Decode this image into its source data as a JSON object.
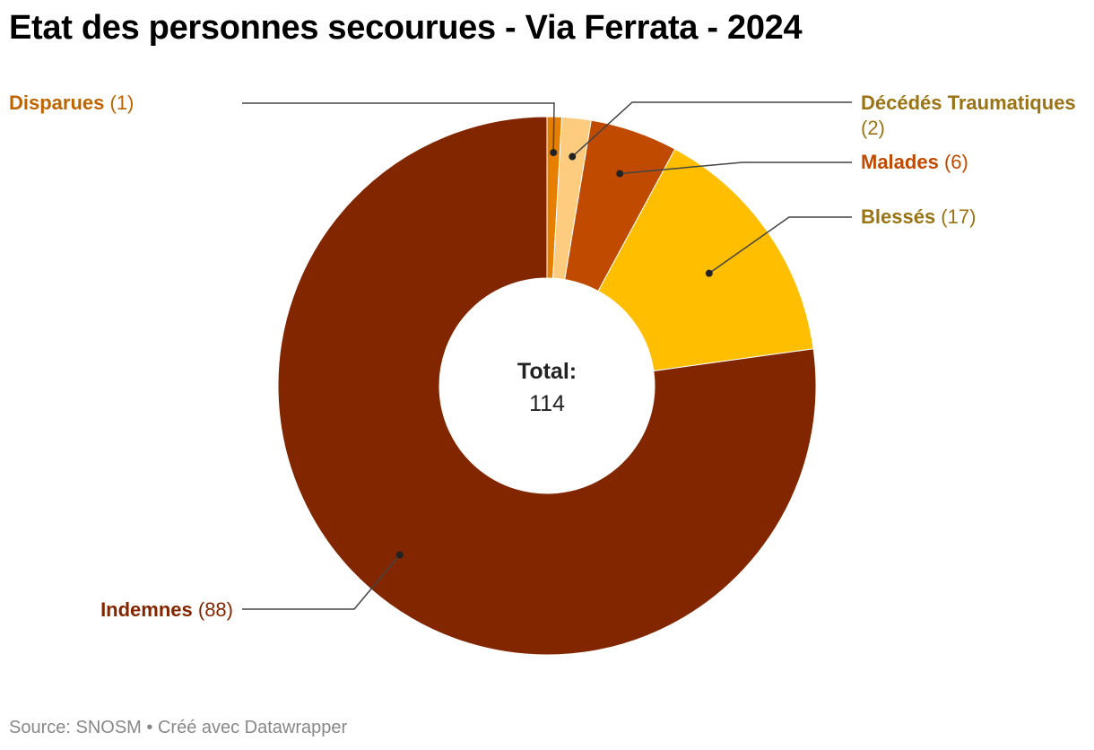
{
  "title": "Etat des personnes secourues - Via Ferrata - 2024",
  "footer": {
    "source": "Source: SNOSM",
    "separator": "•",
    "credit": "Créé avec Datawrapper"
  },
  "chart_data": {
    "type": "pie",
    "variant": "donut",
    "title": "Etat des personnes secourues - Via Ferrata - 2024",
    "center_label": "Total:",
    "center_value": "114",
    "total": 114,
    "slices": [
      {
        "label": "Disparues",
        "value": 1,
        "value_text": "(1)",
        "color": "#e67e00",
        "label_color": "#c06400"
      },
      {
        "label": "Décédés Traumatiques",
        "value": 2,
        "value_text": "(2)",
        "color": "#fdcc7e",
        "label_color": "#9a7414"
      },
      {
        "label": "Malades",
        "value": 6,
        "value_text": "(6)",
        "color": "#c04a00",
        "label_color": "#c04a00"
      },
      {
        "label": "Blessés",
        "value": 17,
        "value_text": "(17)",
        "color": "#ffbf00",
        "label_color": "#9a7414"
      },
      {
        "label": "Indemnes",
        "value": 88,
        "value_text": "(88)",
        "color": "#822600",
        "label_color": "#822600"
      }
    ]
  }
}
